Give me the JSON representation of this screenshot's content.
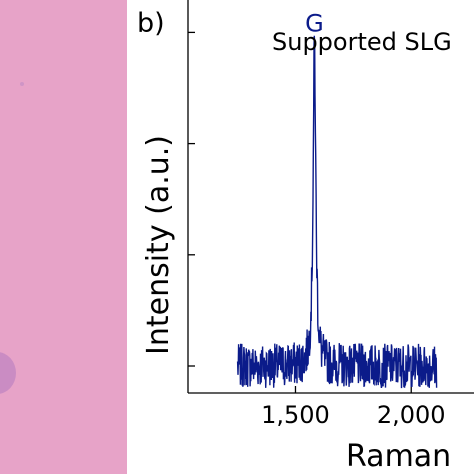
{
  "panel_label": "b)",
  "colors": {
    "photo": "#e7a3c8",
    "flake": "#ca8cc3",
    "trace": "#0b1b8a"
  },
  "chart_data": {
    "type": "line",
    "title": "Supported SLG",
    "xlabel": "Raman",
    "ylabel": "Intensity (a.u.)",
    "xlim": [
      1200,
      2110
    ],
    "xticks": [
      1500,
      2000
    ],
    "xtick_labels": [
      "1,500",
      "2,000"
    ],
    "ylim": [
      0,
      1
    ],
    "yticks": [
      0.0,
      0.2,
      0.4,
      0.6,
      0.8,
      1.0
    ],
    "baseline": 0.0,
    "noise": 0.04,
    "range": [
      1250,
      2110
    ],
    "peaks": [
      {
        "label": "G",
        "x": 1582,
        "height": 0.58,
        "width": 7
      }
    ],
    "grid": false
  }
}
